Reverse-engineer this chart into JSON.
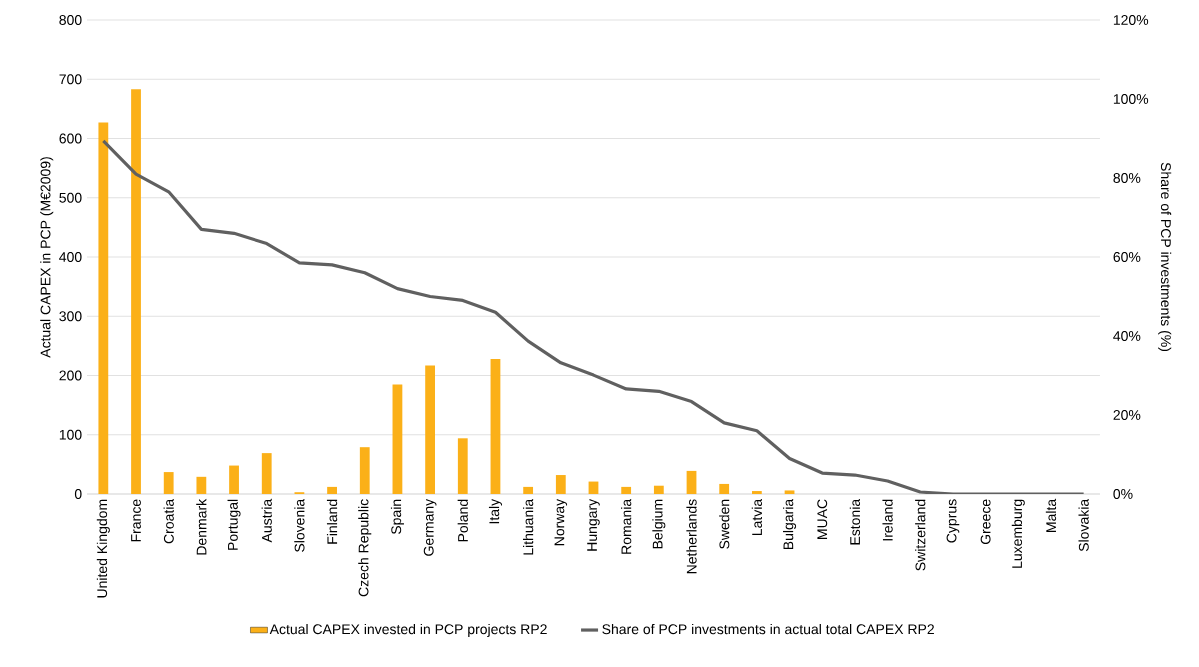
{
  "chart_data": {
    "type": "bar",
    "ylabel": "Actual CAPEX in PCP (M€2009)",
    "y2label": "Share of PCP investments (%)",
    "categories": [
      "United Kingdom",
      "France",
      "Croatia",
      "Denmark",
      "Portugal",
      "Austria",
      "Slovenia",
      "Finland",
      "Czech Republic",
      "Spain",
      "Germany",
      "Poland",
      "Italy",
      "Lithuania",
      "Norway",
      "Hungary",
      "Romania",
      "Belgium",
      "Netherlands",
      "Sweden",
      "Latvia",
      "Bulgaria",
      "MUAC",
      "Estonia",
      "Ireland",
      "Switzerland",
      "Cyprus",
      "Greece",
      "Luxemburg",
      "Malta",
      "Slovakia"
    ],
    "series": [
      {
        "name": "Actual CAPEX invested in PCP projects RP2",
        "color": "#fbb018",
        "values": [
          627,
          683,
          37,
          29,
          48,
          69,
          3,
          12,
          79,
          185,
          217,
          94,
          228,
          12,
          32,
          21,
          12,
          14,
          39,
          17,
          5,
          6,
          0,
          0,
          0,
          0,
          0,
          0,
          0,
          0,
          0
        ]
      },
      {
        "name": "Share of PCP investments in actual total CAPEX RP2",
        "type": "line",
        "axis": "y2",
        "color": "#606060",
        "values": [
          89.4,
          81,
          76.5,
          67,
          66,
          63.4,
          58.5,
          58,
          56,
          52,
          50,
          49,
          46,
          38.7,
          33.2,
          30.1,
          26.6,
          26,
          23.4,
          18,
          16,
          9,
          5.3,
          4.8,
          3.3,
          0.5,
          0,
          0,
          0,
          0,
          0
        ]
      }
    ],
    "ylim": [
      0,
      800
    ],
    "yticks": [
      0,
      100,
      200,
      300,
      400,
      500,
      600,
      700,
      800
    ],
    "y2lim": [
      0,
      120
    ],
    "y2ticks": [
      {
        "value": 0,
        "label": "0%"
      },
      {
        "value": 20,
        "label": "20%"
      },
      {
        "value": 40,
        "label": "40%"
      },
      {
        "value": 60,
        "label": "60%"
      },
      {
        "value": 80,
        "label": "80%"
      },
      {
        "value": 100,
        "label": "100%"
      },
      {
        "value": 120,
        "label": "120%"
      }
    ],
    "grid": "y",
    "legend": "bottom"
  }
}
